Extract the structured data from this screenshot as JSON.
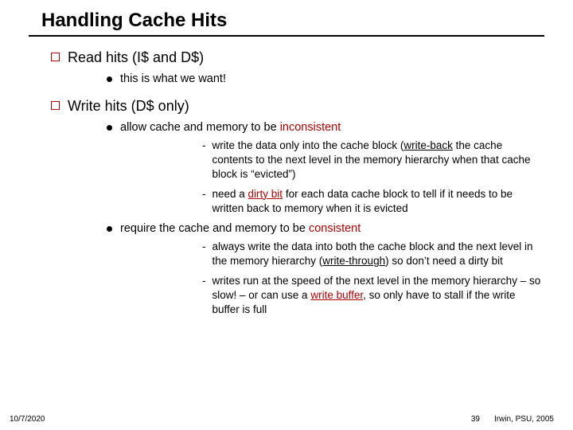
{
  "title": "Handling Cache Hits",
  "sections": [
    {
      "heading": "Read hits (I$ and D$)",
      "bullets": [
        {
          "text": "this is what we want!"
        }
      ]
    },
    {
      "heading": "Write hits (D$ only)",
      "bullets": [
        {
          "text_pre": "allow cache and memory to be ",
          "text_hl": "inconsistent",
          "subs": [
            {
              "pre": "write the data only into the cache block (",
              "hl": "write-back",
              "post": " the cache contents to the next level in the memory hierarchy when that cache block is “evicted”)"
            },
            {
              "pre": "need a ",
              "hl": "dirty bit",
              "post": " for each data cache block to tell if it needs to be written back to memory when it is evicted"
            }
          ]
        },
        {
          "text_pre": "require the cache and memory to be ",
          "text_hl": "consistent",
          "subs": [
            {
              "pre": "always write the data into both the cache block and the next level in the memory hierarchy (",
              "hl": "write-through",
              "post": ") so don’t need a dirty bit"
            },
            {
              "pre": "writes run at the speed of the next level in the memory hierarchy – so slow! – or can use a ",
              "hl": "write buffer",
              "post": ", so only have to stall if the write buffer is full"
            }
          ]
        }
      ]
    }
  ],
  "footer": {
    "date": "10/7/2020",
    "page": "39",
    "credit": "Irwin, PSU, 2005"
  }
}
